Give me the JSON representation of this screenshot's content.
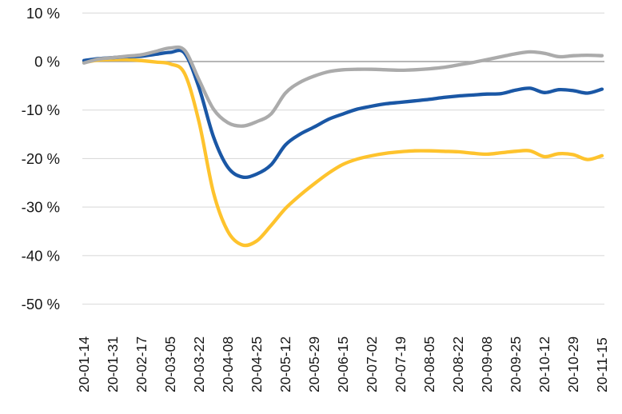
{
  "chart_data": {
    "type": "line",
    "title": "",
    "legend": "none",
    "grid": "horizontal",
    "ylim": [
      -50,
      10
    ],
    "y_ticks": [
      {
        "value": 10,
        "label": "10 %"
      },
      {
        "value": 0,
        "label": "0 %"
      },
      {
        "value": -10,
        "label": "-10 %"
      },
      {
        "value": -20,
        "label": "-20 %"
      },
      {
        "value": -30,
        "label": "-30 %"
      },
      {
        "value": -40,
        "label": "-40 %"
      },
      {
        "value": -50,
        "label": "-50 %"
      }
    ],
    "x_tick_labels": [
      "20-01-14",
      "20-01-31",
      "20-02-17",
      "20-03-05",
      "20-03-22",
      "20-04-08",
      "20-04-25",
      "20-05-12",
      "20-05-29",
      "20-06-15",
      "20-07-02",
      "20-07-19",
      "20-08-05",
      "20-08-22",
      "20-09-08",
      "20-09-25",
      "20-10-12",
      "20-10-29",
      "20-11-15"
    ],
    "x_tick_interval_days": 17,
    "points_per_tick_interval": 2,
    "colors": {
      "gridline": "#DBDBDB",
      "zero_line": "#9E9E9E",
      "tick_text": "#161616"
    },
    "series": [
      {
        "name": "yellow-line",
        "color": "#FEC32D",
        "values": [
          -0.2,
          0.3,
          0.4,
          0.4,
          0.2,
          -0.1,
          -0.5,
          -2.5,
          -12.5,
          -27.0,
          -35.0,
          -37.8,
          -37.0,
          -33.8,
          -30.3,
          -27.6,
          -25.2,
          -23.0,
          -21.2,
          -20.1,
          -19.4,
          -18.9,
          -18.6,
          -18.4,
          -18.4,
          -18.5,
          -18.6,
          -18.9,
          -19.1,
          -18.8,
          -18.5,
          -18.4,
          -19.6,
          -19.0,
          -19.2,
          -20.2,
          -19.4
        ]
      },
      {
        "name": "blue-line",
        "color": "#1A57A5",
        "values": [
          0.2,
          0.6,
          0.8,
          1.0,
          1.1,
          1.5,
          1.9,
          1.7,
          -5.4,
          -15.5,
          -21.8,
          -23.8,
          -23.2,
          -21.3,
          -17.2,
          -15.0,
          -13.5,
          -11.9,
          -10.8,
          -9.8,
          -9.2,
          -8.7,
          -8.4,
          -8.1,
          -7.8,
          -7.4,
          -7.1,
          -6.9,
          -6.7,
          -6.6,
          -5.9,
          -5.5,
          -6.4,
          -5.8,
          -6.0,
          -6.5,
          -5.7
        ]
      },
      {
        "name": "gray-line",
        "color": "#ABABAB",
        "values": [
          -0.3,
          0.5,
          0.8,
          1.1,
          1.4,
          2.1,
          2.8,
          2.3,
          -3.8,
          -9.8,
          -12.6,
          -13.3,
          -12.4,
          -10.8,
          -6.5,
          -4.3,
          -3.0,
          -2.1,
          -1.7,
          -1.6,
          -1.6,
          -1.7,
          -1.8,
          -1.7,
          -1.5,
          -1.2,
          -0.7,
          -0.2,
          0.4,
          1.0,
          1.6,
          2.0,
          1.7,
          1.0,
          1.2,
          1.3,
          1.2
        ]
      }
    ]
  }
}
